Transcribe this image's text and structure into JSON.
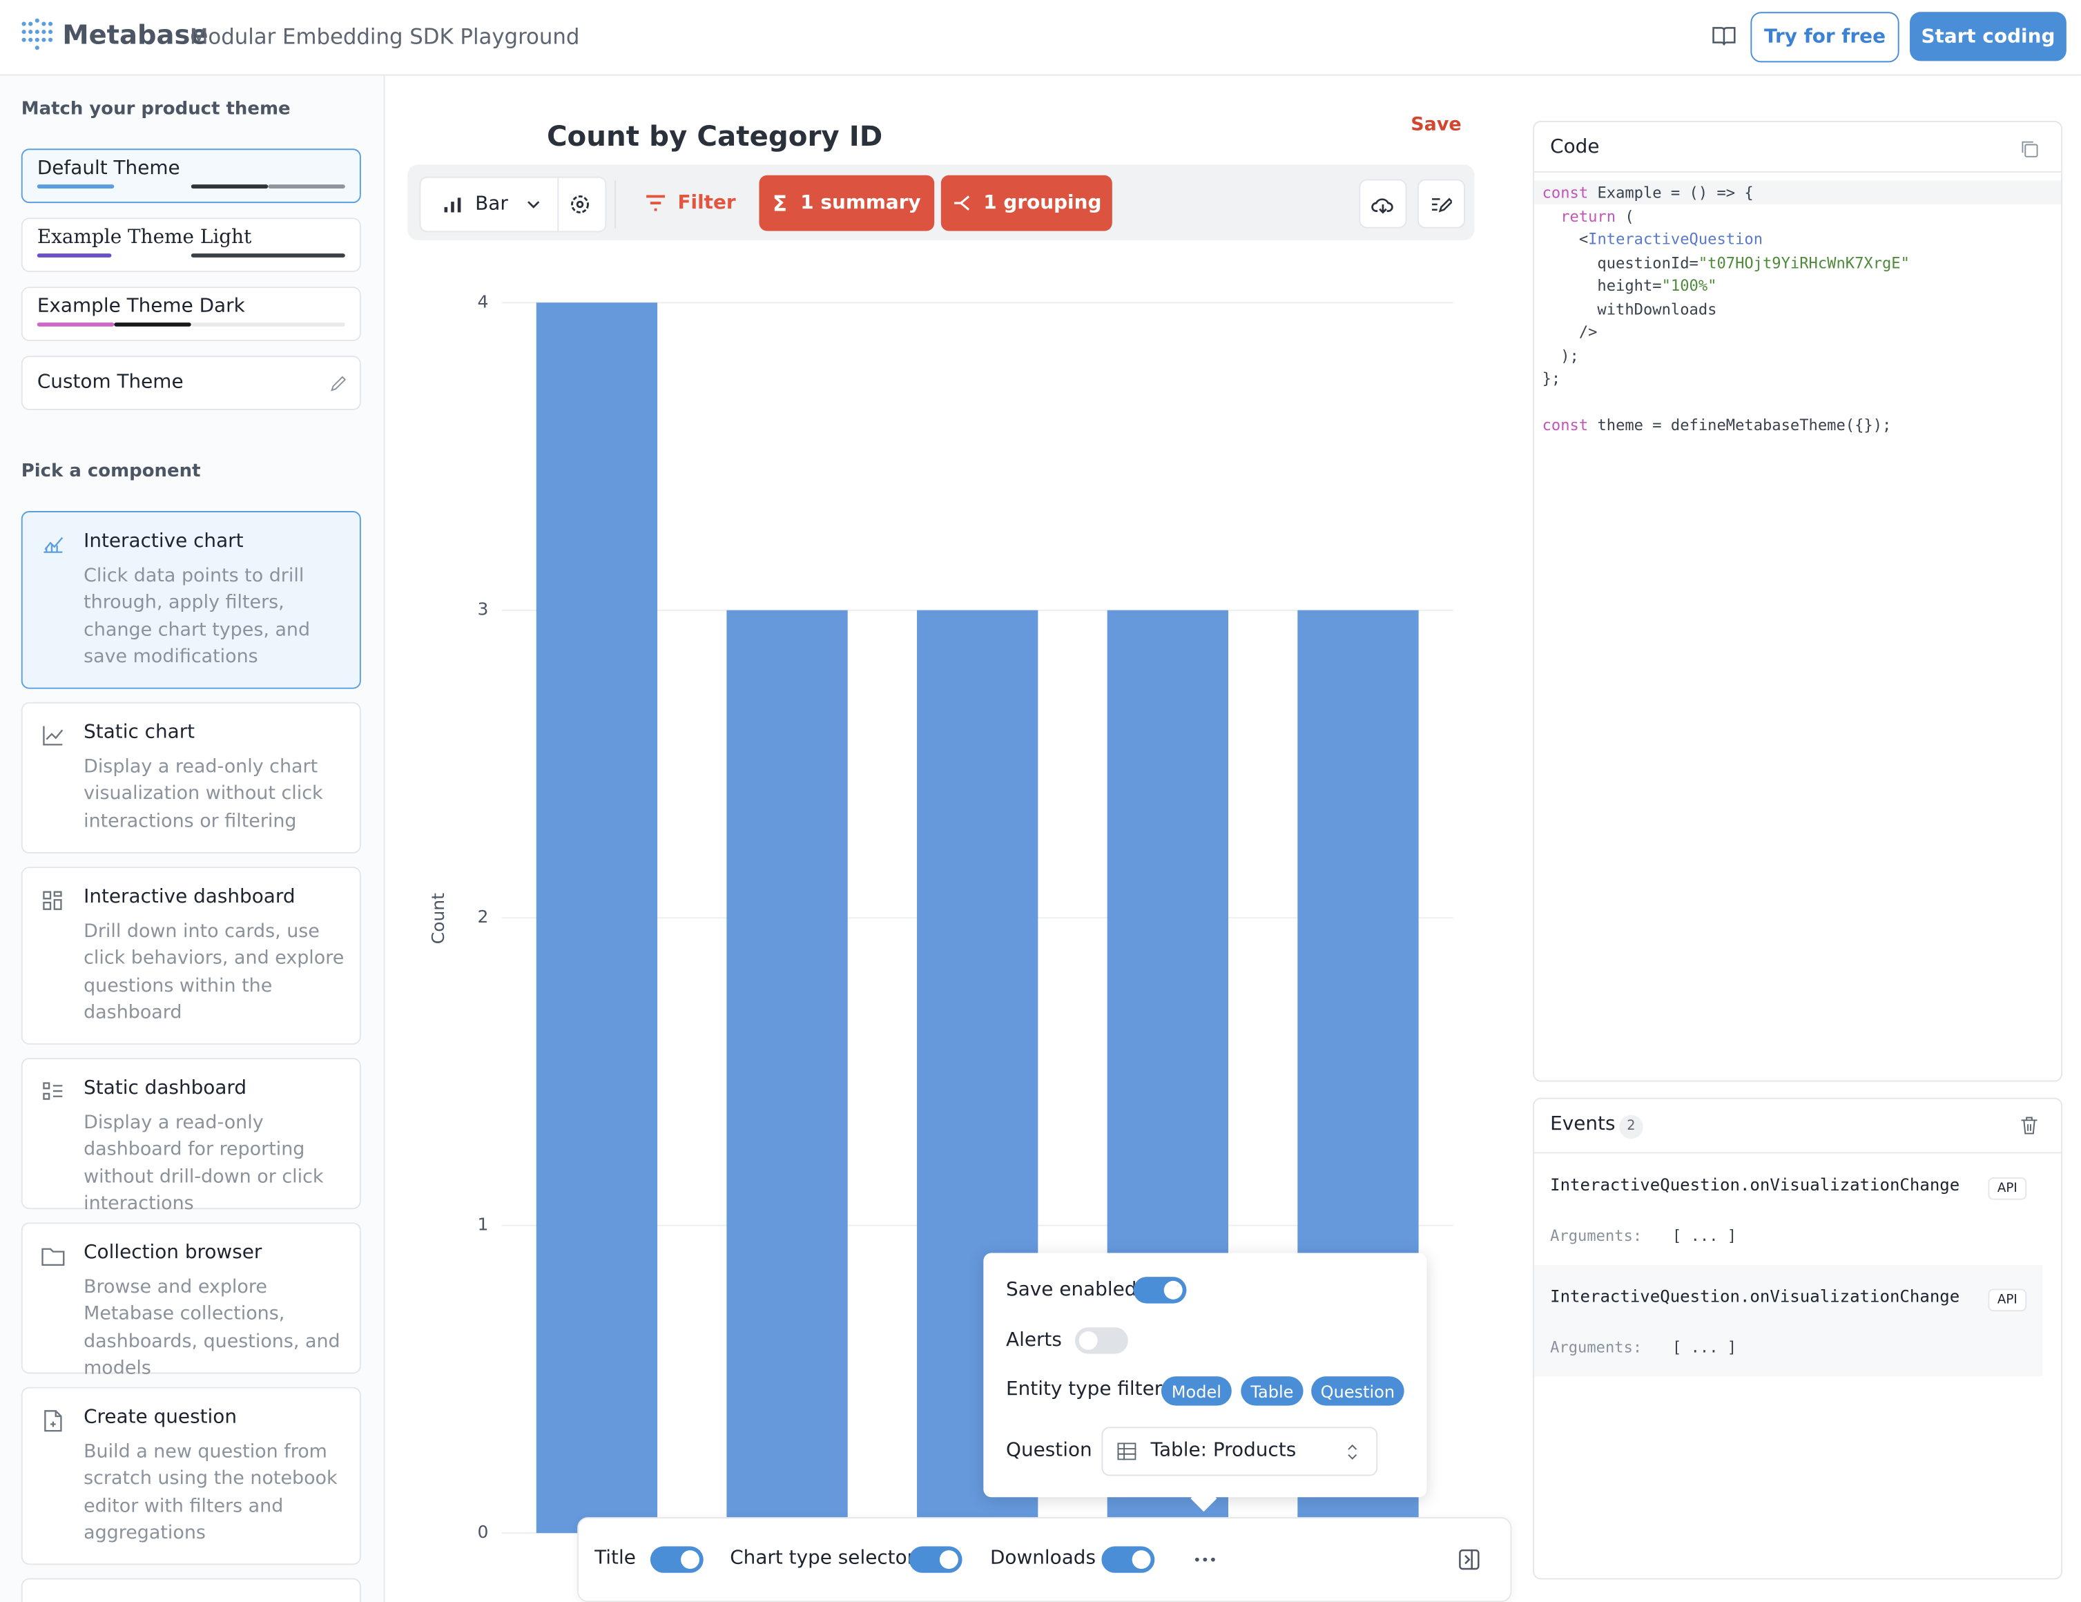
{
  "header": {
    "logo": "Metabase",
    "subtitle": "Modular Embedding SDK Playground",
    "try_button": "Try for free",
    "start_button": "Start coding"
  },
  "sidebar": {
    "theme_heading": "Match your product theme",
    "themes": [
      "Default Theme",
      "Example Theme Light",
      "Example Theme Dark",
      "Custom Theme"
    ],
    "component_heading": "Pick a component",
    "components": [
      {
        "title": "Interactive chart",
        "description": "Click data points to drill through, apply filters, change chart types, and save modifications"
      },
      {
        "title": "Static chart",
        "description": "Display a read-only chart visualization without click interactions or filtering"
      },
      {
        "title": "Interactive dashboard",
        "description": "Drill down into cards, use click behaviors, and explore questions within the dashboard"
      },
      {
        "title": "Static dashboard",
        "description": "Display a read-only dashboard for reporting without drill-down or click interactions"
      },
      {
        "title": "Collection browser",
        "description": "Browse and explore Metabase collections, dashboards, questions, and models"
      },
      {
        "title": "Create question",
        "description": "Build a new question from scratch using the notebook editor with filters and aggregations"
      }
    ]
  },
  "question_toolbar": {
    "save": "Save",
    "chart_type": "Bar",
    "filter": "Filter",
    "summary": "1 summary",
    "grouping": "1 grouping"
  },
  "chart_data": {
    "type": "bar",
    "title": "Count by Category ID",
    "ylabel": "Count",
    "categories": [
      null,
      null,
      null,
      null,
      null
    ],
    "values": [
      4,
      3,
      3,
      3,
      3
    ],
    "color": "#6599dc",
    "ylim": [
      0,
      4
    ],
    "yticks": [
      0,
      1,
      2,
      3,
      4
    ],
    "grid": true
  },
  "popover": {
    "save_enabled": "Save enabled",
    "alerts": "Alerts",
    "entity_filter": "Entity type filter",
    "entity_types": [
      "Model",
      "Table",
      "Question"
    ],
    "question_label": "Question",
    "question_value": "Table: Products"
  },
  "bottom_bar": {
    "toggles": [
      "Title",
      "Chart type selector",
      "Downloads"
    ]
  },
  "code": {
    "title": "Code",
    "lines": [
      [
        "const",
        " Example = () => {"
      ],
      [
        "  return",
        " ("
      ],
      [
        "    <",
        "InteractiveQuestion"
      ],
      [
        "      questionId=",
        "\"t07HOjt9YiRHcWnK7XrgE\""
      ],
      [
        "      height=",
        "\"100%\""
      ],
      [
        "      withDownloads"
      ],
      [
        "    />"
      ],
      [
        "  );"
      ],
      [
        "};"
      ]
    ],
    "theme_line": [
      "const",
      " theme = defineMetabaseTheme({});"
    ]
  },
  "events": {
    "title": "Events",
    "count": 2,
    "items": [
      {
        "name": "InteractiveQuestion.onVisualizationChange",
        "api": "API",
        "arguments_label": "Arguments:",
        "arguments": "[ ... ]"
      },
      {
        "name": "InteractiveQuestion.onVisualizationChange",
        "api": "API",
        "arguments_label": "Arguments:",
        "arguments": "[ ... ]"
      }
    ]
  }
}
